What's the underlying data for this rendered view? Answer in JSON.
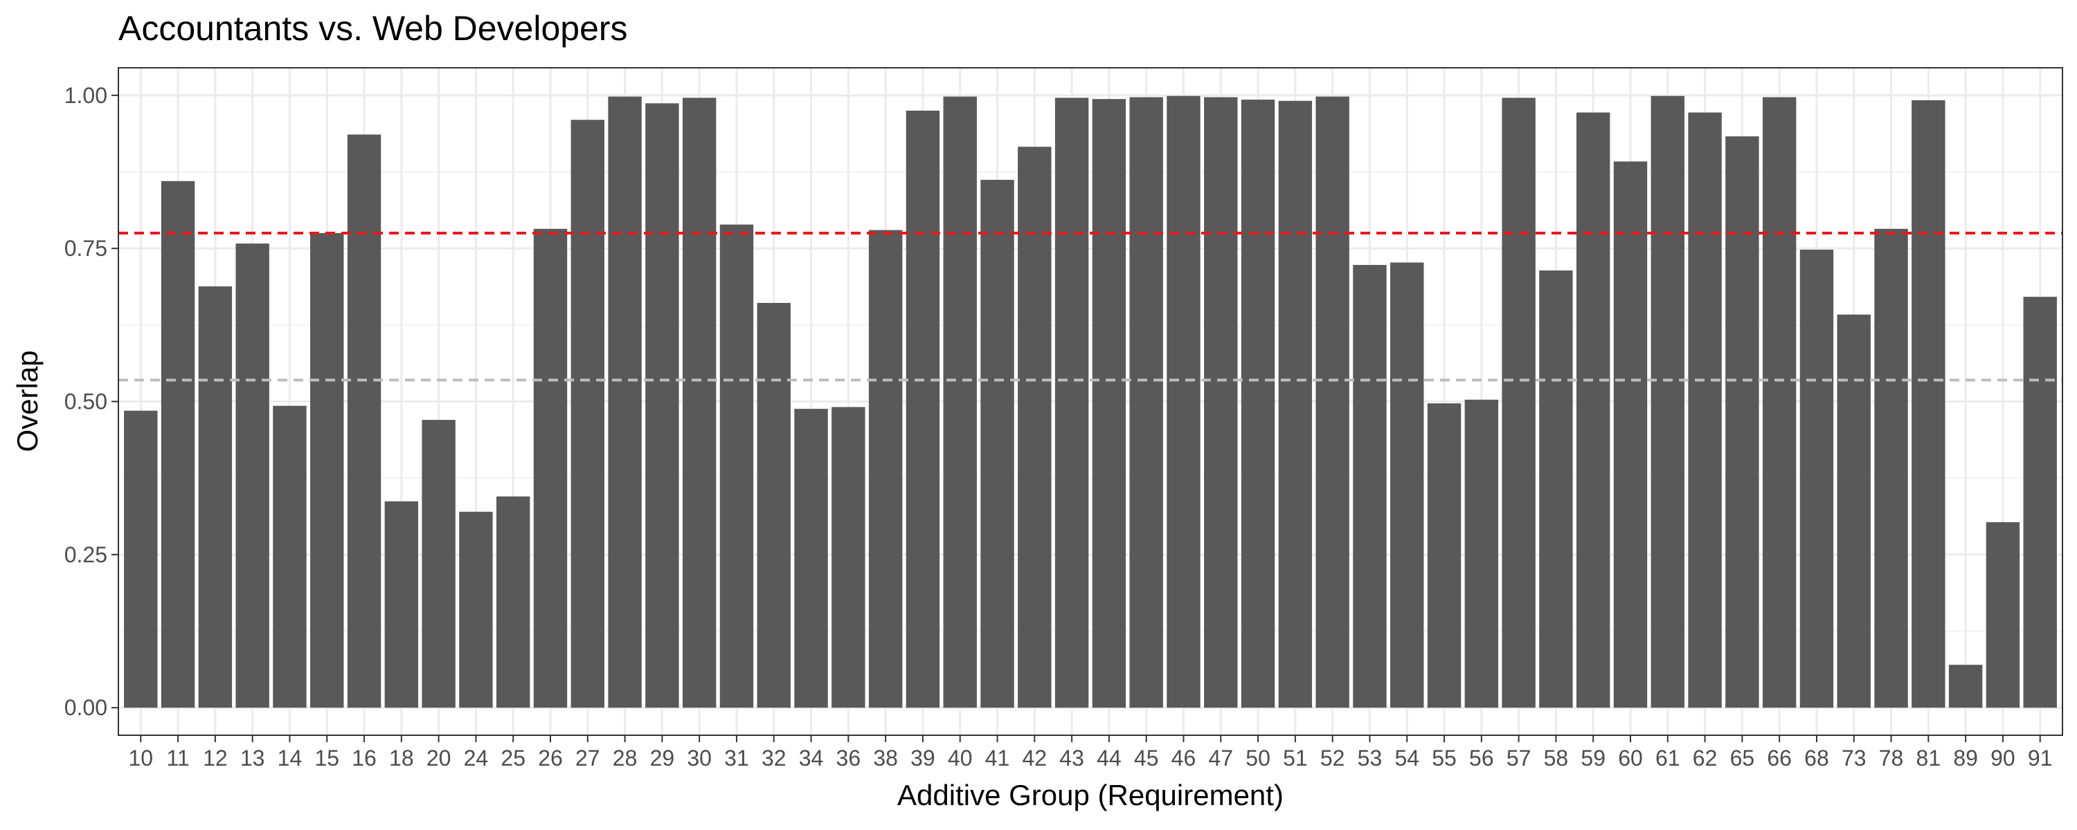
{
  "chart_data": {
    "type": "bar",
    "title": "Accountants vs. Web Developers",
    "xlabel": "Additive Group (Requirement)",
    "ylabel": "Overlap",
    "categories": [
      "10",
      "11",
      "12",
      "13",
      "14",
      "15",
      "16",
      "18",
      "20",
      "24",
      "25",
      "26",
      "27",
      "28",
      "29",
      "30",
      "31",
      "32",
      "34",
      "36",
      "38",
      "39",
      "40",
      "41",
      "42",
      "43",
      "44",
      "45",
      "46",
      "47",
      "50",
      "51",
      "52",
      "53",
      "54",
      "55",
      "56",
      "57",
      "58",
      "59",
      "60",
      "61",
      "62",
      "65",
      "66",
      "68",
      "73",
      "78",
      "81",
      "89",
      "90",
      "91"
    ],
    "values": [
      0.485,
      0.86,
      0.688,
      0.758,
      0.493,
      0.775,
      0.936,
      0.337,
      0.47,
      0.32,
      0.345,
      0.782,
      0.96,
      0.998,
      0.987,
      0.996,
      0.789,
      0.661,
      0.488,
      0.491,
      0.78,
      0.975,
      0.998,
      0.862,
      0.916,
      0.996,
      0.994,
      0.997,
      0.999,
      0.997,
      0.993,
      0.991,
      0.998,
      0.723,
      0.727,
      0.497,
      0.503,
      0.996,
      0.714,
      0.972,
      0.892,
      0.999,
      0.972,
      0.933,
      0.997,
      0.748,
      0.642,
      0.782,
      0.992,
      0.07,
      0.303,
      0.671
    ],
    "ylim": [
      -0.045,
      1.045
    ],
    "yticks": [
      "0.00",
      "0.25",
      "0.50",
      "0.75",
      "1.00"
    ],
    "reference_lines": [
      {
        "value": 0.775,
        "color": "#e41a1c",
        "style": "dashed"
      },
      {
        "value": 0.535,
        "color": "#bdbdbd",
        "style": "dashed"
      }
    ],
    "bar_color": "#595959",
    "grid": true,
    "legend": "none"
  }
}
